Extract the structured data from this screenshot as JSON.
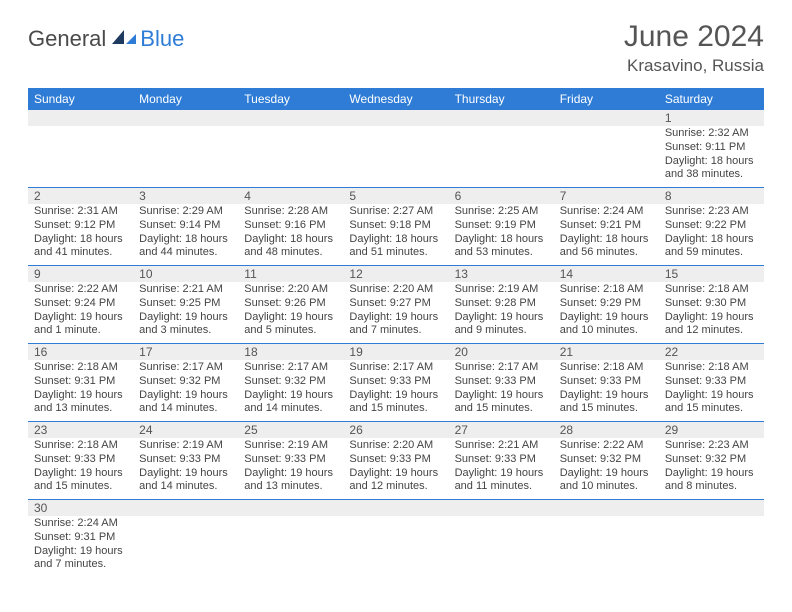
{
  "brand": {
    "part1": "General",
    "part2": "Blue"
  },
  "title": "June 2024",
  "location": "Krasavino, Russia",
  "colors": {
    "header_bg": "#2e7cd6",
    "header_fg": "#ffffff",
    "daynum_bg": "#eeeeee",
    "border": "#2e7cd6",
    "text": "#444444"
  },
  "dayHeaders": [
    "Sunday",
    "Monday",
    "Tuesday",
    "Wednesday",
    "Thursday",
    "Friday",
    "Saturday"
  ],
  "weeks": [
    {
      "nums": [
        "",
        "",
        "",
        "",
        "",
        "",
        "1"
      ],
      "cells": [
        null,
        null,
        null,
        null,
        null,
        null,
        {
          "sunrise": "Sunrise: 2:32 AM",
          "sunset": "Sunset: 9:11 PM",
          "daylight": "Daylight: 18 hours and 38 minutes."
        }
      ]
    },
    {
      "nums": [
        "2",
        "3",
        "4",
        "5",
        "6",
        "7",
        "8"
      ],
      "cells": [
        {
          "sunrise": "Sunrise: 2:31 AM",
          "sunset": "Sunset: 9:12 PM",
          "daylight": "Daylight: 18 hours and 41 minutes."
        },
        {
          "sunrise": "Sunrise: 2:29 AM",
          "sunset": "Sunset: 9:14 PM",
          "daylight": "Daylight: 18 hours and 44 minutes."
        },
        {
          "sunrise": "Sunrise: 2:28 AM",
          "sunset": "Sunset: 9:16 PM",
          "daylight": "Daylight: 18 hours and 48 minutes."
        },
        {
          "sunrise": "Sunrise: 2:27 AM",
          "sunset": "Sunset: 9:18 PM",
          "daylight": "Daylight: 18 hours and 51 minutes."
        },
        {
          "sunrise": "Sunrise: 2:25 AM",
          "sunset": "Sunset: 9:19 PM",
          "daylight": "Daylight: 18 hours and 53 minutes."
        },
        {
          "sunrise": "Sunrise: 2:24 AM",
          "sunset": "Sunset: 9:21 PM",
          "daylight": "Daylight: 18 hours and 56 minutes."
        },
        {
          "sunrise": "Sunrise: 2:23 AM",
          "sunset": "Sunset: 9:22 PM",
          "daylight": "Daylight: 18 hours and 59 minutes."
        }
      ]
    },
    {
      "nums": [
        "9",
        "10",
        "11",
        "12",
        "13",
        "14",
        "15"
      ],
      "cells": [
        {
          "sunrise": "Sunrise: 2:22 AM",
          "sunset": "Sunset: 9:24 PM",
          "daylight": "Daylight: 19 hours and 1 minute."
        },
        {
          "sunrise": "Sunrise: 2:21 AM",
          "sunset": "Sunset: 9:25 PM",
          "daylight": "Daylight: 19 hours and 3 minutes."
        },
        {
          "sunrise": "Sunrise: 2:20 AM",
          "sunset": "Sunset: 9:26 PM",
          "daylight": "Daylight: 19 hours and 5 minutes."
        },
        {
          "sunrise": "Sunrise: 2:20 AM",
          "sunset": "Sunset: 9:27 PM",
          "daylight": "Daylight: 19 hours and 7 minutes."
        },
        {
          "sunrise": "Sunrise: 2:19 AM",
          "sunset": "Sunset: 9:28 PM",
          "daylight": "Daylight: 19 hours and 9 minutes."
        },
        {
          "sunrise": "Sunrise: 2:18 AM",
          "sunset": "Sunset: 9:29 PM",
          "daylight": "Daylight: 19 hours and 10 minutes."
        },
        {
          "sunrise": "Sunrise: 2:18 AM",
          "sunset": "Sunset: 9:30 PM",
          "daylight": "Daylight: 19 hours and 12 minutes."
        }
      ]
    },
    {
      "nums": [
        "16",
        "17",
        "18",
        "19",
        "20",
        "21",
        "22"
      ],
      "cells": [
        {
          "sunrise": "Sunrise: 2:18 AM",
          "sunset": "Sunset: 9:31 PM",
          "daylight": "Daylight: 19 hours and 13 minutes."
        },
        {
          "sunrise": "Sunrise: 2:17 AM",
          "sunset": "Sunset: 9:32 PM",
          "daylight": "Daylight: 19 hours and 14 minutes."
        },
        {
          "sunrise": "Sunrise: 2:17 AM",
          "sunset": "Sunset: 9:32 PM",
          "daylight": "Daylight: 19 hours and 14 minutes."
        },
        {
          "sunrise": "Sunrise: 2:17 AM",
          "sunset": "Sunset: 9:33 PM",
          "daylight": "Daylight: 19 hours and 15 minutes."
        },
        {
          "sunrise": "Sunrise: 2:17 AM",
          "sunset": "Sunset: 9:33 PM",
          "daylight": "Daylight: 19 hours and 15 minutes."
        },
        {
          "sunrise": "Sunrise: 2:18 AM",
          "sunset": "Sunset: 9:33 PM",
          "daylight": "Daylight: 19 hours and 15 minutes."
        },
        {
          "sunrise": "Sunrise: 2:18 AM",
          "sunset": "Sunset: 9:33 PM",
          "daylight": "Daylight: 19 hours and 15 minutes."
        }
      ]
    },
    {
      "nums": [
        "23",
        "24",
        "25",
        "26",
        "27",
        "28",
        "29"
      ],
      "cells": [
        {
          "sunrise": "Sunrise: 2:18 AM",
          "sunset": "Sunset: 9:33 PM",
          "daylight": "Daylight: 19 hours and 15 minutes."
        },
        {
          "sunrise": "Sunrise: 2:19 AM",
          "sunset": "Sunset: 9:33 PM",
          "daylight": "Daylight: 19 hours and 14 minutes."
        },
        {
          "sunrise": "Sunrise: 2:19 AM",
          "sunset": "Sunset: 9:33 PM",
          "daylight": "Daylight: 19 hours and 13 minutes."
        },
        {
          "sunrise": "Sunrise: 2:20 AM",
          "sunset": "Sunset: 9:33 PM",
          "daylight": "Daylight: 19 hours and 12 minutes."
        },
        {
          "sunrise": "Sunrise: 2:21 AM",
          "sunset": "Sunset: 9:33 PM",
          "daylight": "Daylight: 19 hours and 11 minutes."
        },
        {
          "sunrise": "Sunrise: 2:22 AM",
          "sunset": "Sunset: 9:32 PM",
          "daylight": "Daylight: 19 hours and 10 minutes."
        },
        {
          "sunrise": "Sunrise: 2:23 AM",
          "sunset": "Sunset: 9:32 PM",
          "daylight": "Daylight: 19 hours and 8 minutes."
        }
      ]
    },
    {
      "nums": [
        "30",
        "",
        "",
        "",
        "",
        "",
        ""
      ],
      "cells": [
        {
          "sunrise": "Sunrise: 2:24 AM",
          "sunset": "Sunset: 9:31 PM",
          "daylight": "Daylight: 19 hours and 7 minutes."
        },
        null,
        null,
        null,
        null,
        null,
        null
      ]
    }
  ]
}
